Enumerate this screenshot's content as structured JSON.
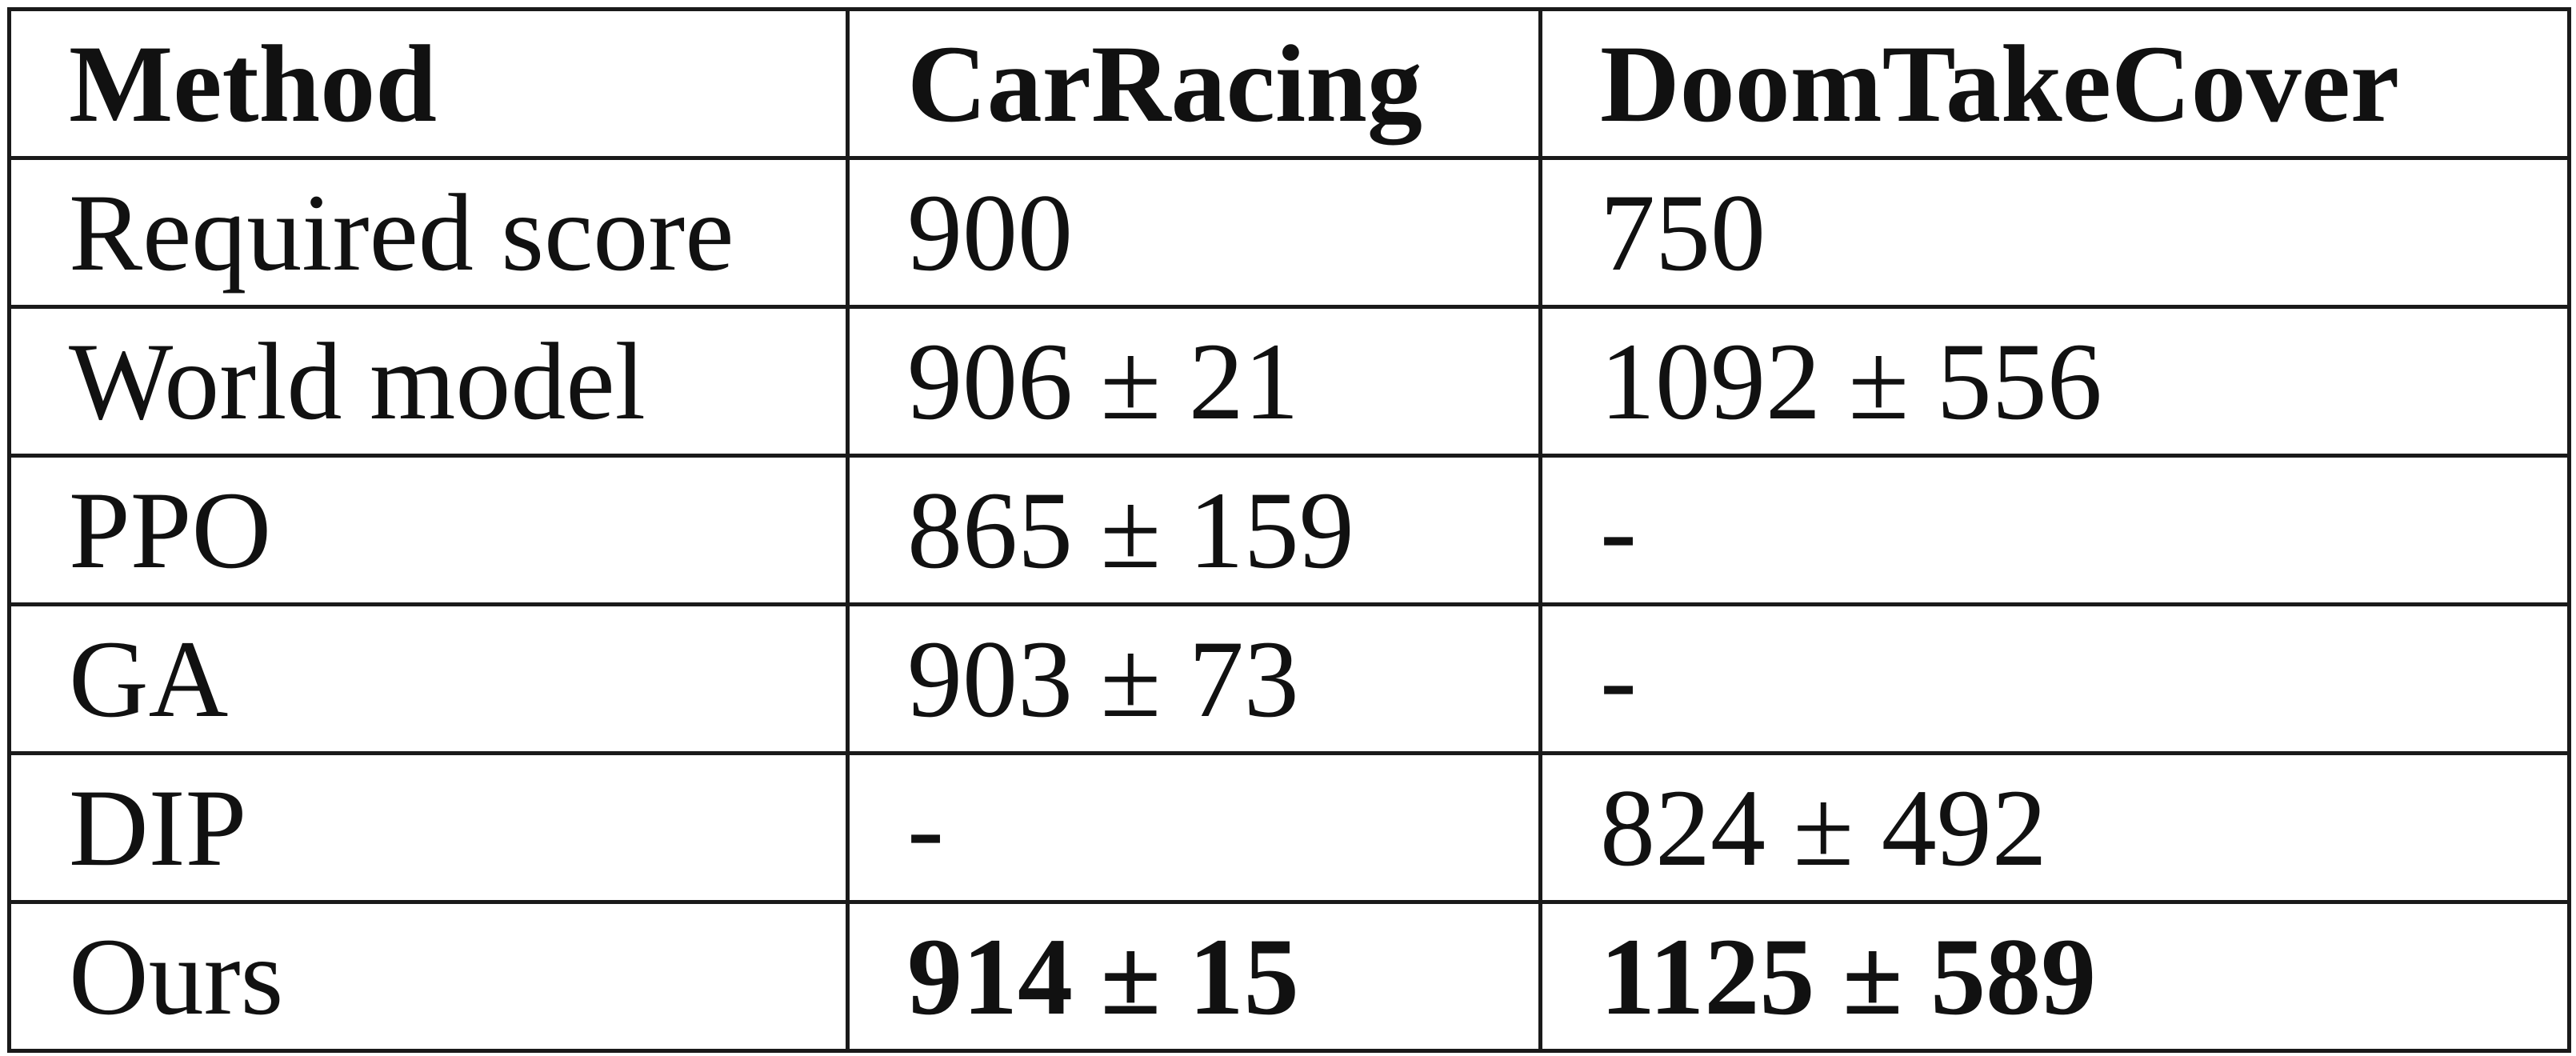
{
  "table": {
    "headers": [
      "Method",
      "CarRacing",
      "DoomTakeCover"
    ],
    "rows": [
      {
        "method": "Required score",
        "carracing": "900",
        "doom": "750"
      },
      {
        "method": "World model",
        "carracing": "906 ± 21",
        "doom": "1092 ± 556"
      },
      {
        "method": "PPO",
        "carracing": "865 ± 159",
        "doom": "-"
      },
      {
        "method": "GA",
        "carracing": "903 ± 73",
        "doom": "-"
      },
      {
        "method": "DIP",
        "carracing": "-",
        "doom": "824 ± 492"
      },
      {
        "method": "Ours",
        "carracing": "914 ± 15",
        "doom": "1125 ± 589"
      }
    ]
  }
}
